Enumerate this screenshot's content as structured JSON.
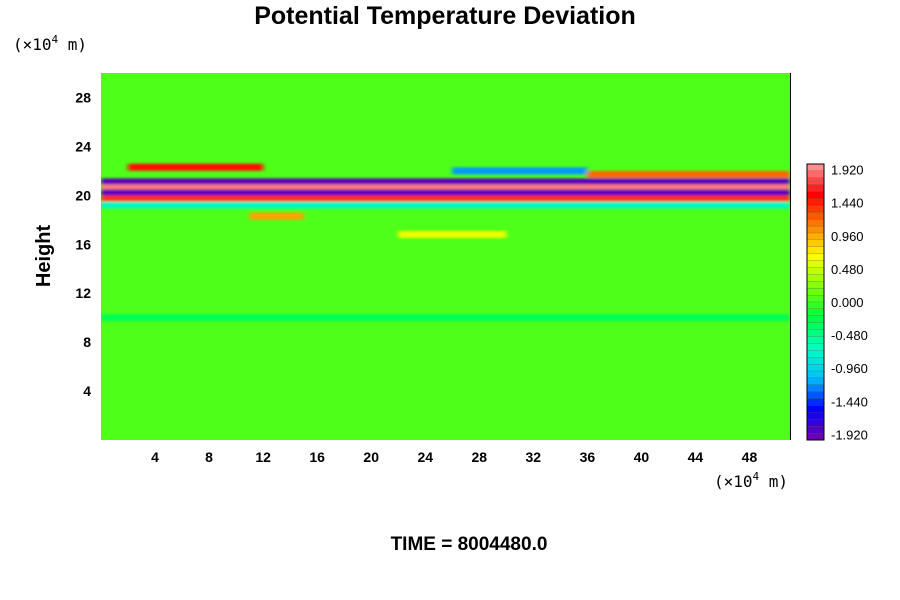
{
  "chart_data": {
    "type": "heatmap",
    "title": "Potential Temperature Deviation",
    "ylabel": "Height",
    "xlabel": "",
    "x_unit": {
      "prefix": "(×10",
      "exp": "4",
      "suffix": " m)"
    },
    "y_unit": {
      "prefix": "(×10",
      "exp": "4",
      "suffix": " m)"
    },
    "xlim": [
      0,
      51
    ],
    "ylim": [
      0,
      30
    ],
    "x_ticks": [
      4,
      8,
      12,
      16,
      20,
      24,
      28,
      32,
      36,
      40,
      44,
      48
    ],
    "y_ticks": [
      4,
      8,
      12,
      16,
      20,
      24,
      28
    ],
    "colorbar": {
      "min": -2.0,
      "max": 2.0,
      "ticks": [
        "1.920",
        "1.440",
        "0.960",
        "0.480",
        "0.000",
        "-0.480",
        "-0.960",
        "-1.440",
        "-1.920"
      ],
      "colors_low_to_high": [
        "#7a00a8",
        "#0000ff",
        "#00bfff",
        "#00ffbf",
        "#00ff40",
        "#80ff00",
        "#ffff00",
        "#ff8000",
        "#ff0000",
        "#ffa0a0"
      ]
    },
    "background_value": 0.05,
    "bands": [
      {
        "y": 22.3,
        "x": [
          2,
          12
        ],
        "value": 1.5
      },
      {
        "y": 22.0,
        "x": [
          26,
          36
        ],
        "value": -1.2
      },
      {
        "y": 21.7,
        "x": [
          36,
          51
        ],
        "value": 1.2
      },
      {
        "y": 21.1,
        "x": [
          0,
          51
        ],
        "value": -1.9
      },
      {
        "y": 20.6,
        "x": [
          0,
          51
        ],
        "value": 1.9
      },
      {
        "y": 20.2,
        "x": [
          0,
          51
        ],
        "value": -1.9
      },
      {
        "y": 19.7,
        "x": [
          0,
          51
        ],
        "value": 1.4
      },
      {
        "y": 19.2,
        "x": [
          0,
          51
        ],
        "value": -0.7
      },
      {
        "y": 18.3,
        "x": [
          11,
          15
        ],
        "value": 1.0
      },
      {
        "y": 16.8,
        "x": [
          22,
          30
        ],
        "value": 0.6
      },
      {
        "y": 10.0,
        "x": [
          0,
          51
        ],
        "value": -0.3
      }
    ]
  },
  "footer": {
    "time_label": "TIME = 8004480.0"
  }
}
